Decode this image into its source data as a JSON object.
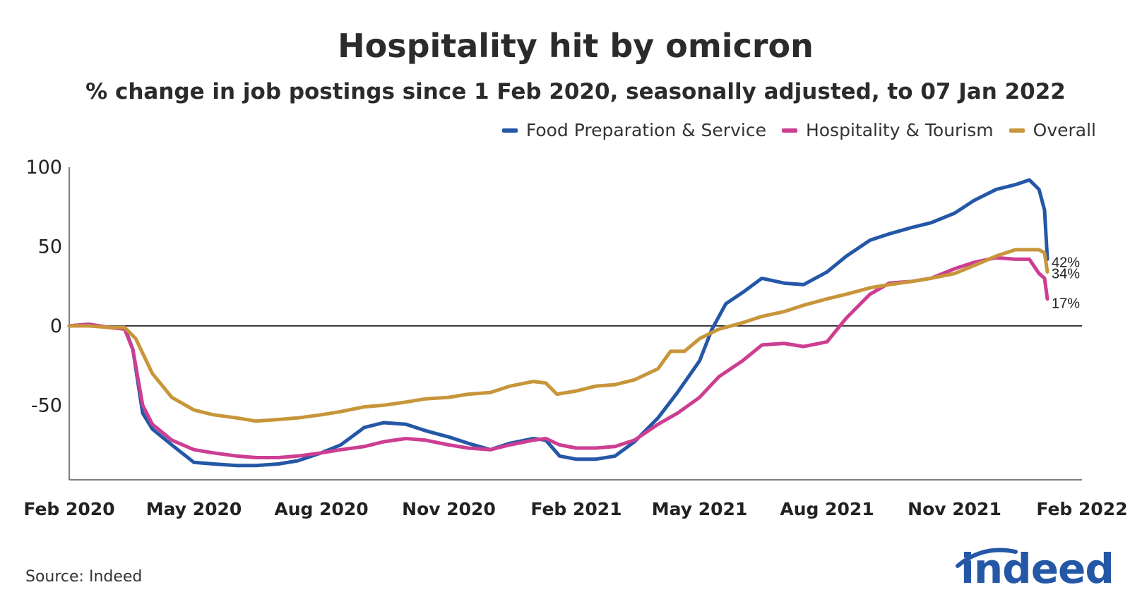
{
  "chart_data": {
    "type": "line",
    "title": "Hospitality hit by omicron",
    "subtitle": "% change in job postings since 1 Feb 2020, seasonally adjusted, to 07 Jan 2022",
    "xlabel": "",
    "ylabel": "",
    "ylim": [
      -97,
      100
    ],
    "yticks": [
      100,
      50,
      0,
      -50
    ],
    "ytick_labels": [
      "100",
      "50",
      "0",
      "-50"
    ],
    "xticks": [
      "2020-02-01",
      "2020-05-01",
      "2020-08-01",
      "2020-11-01",
      "2021-02-01",
      "2021-05-01",
      "2021-08-01",
      "2021-11-01",
      "2022-02-01"
    ],
    "xtick_labels": [
      "Feb 2020",
      "May 2020",
      "Aug 2020",
      "Nov 2020",
      "Feb 2021",
      "May 2021",
      "Aug 2021",
      "Nov 2021",
      "Feb 2022"
    ],
    "xlim": [
      "2020-02-01",
      "2022-02-01"
    ],
    "zero_line": true,
    "grid": false,
    "legend_position": "top-right",
    "series": [
      {
        "name": "Food Preparation & Service",
        "color": "#2557a7",
        "end_label": "42%",
        "points": [
          [
            "2020-02-01",
            0
          ],
          [
            "2020-02-15",
            1
          ],
          [
            "2020-03-01",
            -1
          ],
          [
            "2020-03-12",
            -1
          ],
          [
            "2020-03-18",
            -15
          ],
          [
            "2020-03-25",
            -55
          ],
          [
            "2020-04-01",
            -65
          ],
          [
            "2020-04-15",
            -75
          ],
          [
            "2020-05-01",
            -86
          ],
          [
            "2020-05-15",
            -87
          ],
          [
            "2020-06-01",
            -88
          ],
          [
            "2020-06-15",
            -88
          ],
          [
            "2020-07-01",
            -87
          ],
          [
            "2020-07-15",
            -85
          ],
          [
            "2020-08-01",
            -80
          ],
          [
            "2020-08-15",
            -75
          ],
          [
            "2020-09-01",
            -64
          ],
          [
            "2020-09-15",
            -61
          ],
          [
            "2020-10-01",
            -62
          ],
          [
            "2020-10-15",
            -66
          ],
          [
            "2020-11-01",
            -70
          ],
          [
            "2020-11-15",
            -74
          ],
          [
            "2020-12-01",
            -78
          ],
          [
            "2020-12-15",
            -74
          ],
          [
            "2021-01-01",
            -71
          ],
          [
            "2021-01-10",
            -72
          ],
          [
            "2021-01-20",
            -82
          ],
          [
            "2021-02-01",
            -84
          ],
          [
            "2021-02-15",
            -84
          ],
          [
            "2021-03-01",
            -82
          ],
          [
            "2021-03-15",
            -73
          ],
          [
            "2021-04-01",
            -58
          ],
          [
            "2021-04-15",
            -42
          ],
          [
            "2021-05-01",
            -22
          ],
          [
            "2021-05-10",
            -2
          ],
          [
            "2021-05-20",
            14
          ],
          [
            "2021-06-01",
            21
          ],
          [
            "2021-06-15",
            30
          ],
          [
            "2021-07-01",
            27
          ],
          [
            "2021-07-15",
            26
          ],
          [
            "2021-08-01",
            34
          ],
          [
            "2021-08-15",
            44
          ],
          [
            "2021-09-01",
            54
          ],
          [
            "2021-09-15",
            58
          ],
          [
            "2021-10-01",
            62
          ],
          [
            "2021-10-15",
            65
          ],
          [
            "2021-11-01",
            71
          ],
          [
            "2021-11-15",
            79
          ],
          [
            "2021-12-01",
            86
          ],
          [
            "2021-12-15",
            89
          ],
          [
            "2021-12-25",
            92
          ],
          [
            "2022-01-01",
            86
          ],
          [
            "2022-01-05",
            73
          ],
          [
            "2022-01-07",
            42
          ]
        ]
      },
      {
        "name": "Hospitality & Tourism",
        "color": "#cd3e92",
        "end_label": "17%",
        "points": [
          [
            "2020-02-01",
            0
          ],
          [
            "2020-02-15",
            1
          ],
          [
            "2020-03-01",
            -1
          ],
          [
            "2020-03-12",
            -2
          ],
          [
            "2020-03-18",
            -15
          ],
          [
            "2020-03-25",
            -50
          ],
          [
            "2020-04-01",
            -62
          ],
          [
            "2020-04-15",
            -72
          ],
          [
            "2020-05-01",
            -78
          ],
          [
            "2020-05-15",
            -80
          ],
          [
            "2020-06-01",
            -82
          ],
          [
            "2020-06-15",
            -83
          ],
          [
            "2020-07-01",
            -83
          ],
          [
            "2020-07-15",
            -82
          ],
          [
            "2020-08-01",
            -80
          ],
          [
            "2020-08-15",
            -78
          ],
          [
            "2020-09-01",
            -76
          ],
          [
            "2020-09-15",
            -73
          ],
          [
            "2020-10-01",
            -71
          ],
          [
            "2020-10-15",
            -72
          ],
          [
            "2020-11-01",
            -75
          ],
          [
            "2020-11-15",
            -77
          ],
          [
            "2020-12-01",
            -78
          ],
          [
            "2020-12-15",
            -75
          ],
          [
            "2021-01-01",
            -72
          ],
          [
            "2021-01-10",
            -71
          ],
          [
            "2021-01-20",
            -75
          ],
          [
            "2021-02-01",
            -77
          ],
          [
            "2021-02-15",
            -77
          ],
          [
            "2021-03-01",
            -76
          ],
          [
            "2021-03-15",
            -72
          ],
          [
            "2021-04-01",
            -62
          ],
          [
            "2021-04-15",
            -55
          ],
          [
            "2021-05-01",
            -45
          ],
          [
            "2021-05-15",
            -32
          ],
          [
            "2021-06-01",
            -22
          ],
          [
            "2021-06-15",
            -12
          ],
          [
            "2021-07-01",
            -11
          ],
          [
            "2021-07-15",
            -13
          ],
          [
            "2021-08-01",
            -10
          ],
          [
            "2021-08-15",
            5
          ],
          [
            "2021-09-01",
            20
          ],
          [
            "2021-09-15",
            27
          ],
          [
            "2021-10-01",
            28
          ],
          [
            "2021-10-15",
            30
          ],
          [
            "2021-11-01",
            36
          ],
          [
            "2021-11-15",
            40
          ],
          [
            "2021-12-01",
            43
          ],
          [
            "2021-12-15",
            42
          ],
          [
            "2021-12-25",
            42
          ],
          [
            "2022-01-01",
            33
          ],
          [
            "2022-01-05",
            30
          ],
          [
            "2022-01-07",
            17
          ]
        ]
      },
      {
        "name": "Overall",
        "color": "#c8963a",
        "end_label": "34%",
        "points": [
          [
            "2020-02-01",
            0
          ],
          [
            "2020-02-15",
            0
          ],
          [
            "2020-03-01",
            -1
          ],
          [
            "2020-03-12",
            -1
          ],
          [
            "2020-03-20",
            -8
          ],
          [
            "2020-04-01",
            -30
          ],
          [
            "2020-04-15",
            -45
          ],
          [
            "2020-05-01",
            -53
          ],
          [
            "2020-05-15",
            -56
          ],
          [
            "2020-06-01",
            -58
          ],
          [
            "2020-06-15",
            -60
          ],
          [
            "2020-07-01",
            -59
          ],
          [
            "2020-07-15",
            -58
          ],
          [
            "2020-08-01",
            -56
          ],
          [
            "2020-08-15",
            -54
          ],
          [
            "2020-09-01",
            -51
          ],
          [
            "2020-09-15",
            -50
          ],
          [
            "2020-10-01",
            -48
          ],
          [
            "2020-10-15",
            -46
          ],
          [
            "2020-11-01",
            -45
          ],
          [
            "2020-11-15",
            -43
          ],
          [
            "2020-12-01",
            -42
          ],
          [
            "2020-12-15",
            -38
          ],
          [
            "2021-01-01",
            -35
          ],
          [
            "2021-01-10",
            -36
          ],
          [
            "2021-01-18",
            -43
          ],
          [
            "2021-02-01",
            -41
          ],
          [
            "2021-02-15",
            -38
          ],
          [
            "2021-03-01",
            -37
          ],
          [
            "2021-03-15",
            -34
          ],
          [
            "2021-04-01",
            -27
          ],
          [
            "2021-04-10",
            -16
          ],
          [
            "2021-04-20",
            -16
          ],
          [
            "2021-05-01",
            -8
          ],
          [
            "2021-05-15",
            -2
          ],
          [
            "2021-06-01",
            2
          ],
          [
            "2021-06-15",
            6
          ],
          [
            "2021-07-01",
            9
          ],
          [
            "2021-07-15",
            13
          ],
          [
            "2021-08-01",
            17
          ],
          [
            "2021-08-15",
            20
          ],
          [
            "2021-09-01",
            24
          ],
          [
            "2021-09-15",
            26
          ],
          [
            "2021-10-01",
            28
          ],
          [
            "2021-10-15",
            30
          ],
          [
            "2021-11-01",
            33
          ],
          [
            "2021-11-15",
            38
          ],
          [
            "2021-12-01",
            44
          ],
          [
            "2021-12-15",
            48
          ],
          [
            "2021-12-25",
            48
          ],
          [
            "2022-01-01",
            48
          ],
          [
            "2022-01-05",
            46
          ],
          [
            "2022-01-07",
            34
          ]
        ]
      }
    ]
  },
  "source": "Source: Indeed",
  "logo_text": "indeed",
  "colors": {
    "axis": "#000000",
    "text": "#222222",
    "logo": "#2557a7"
  }
}
